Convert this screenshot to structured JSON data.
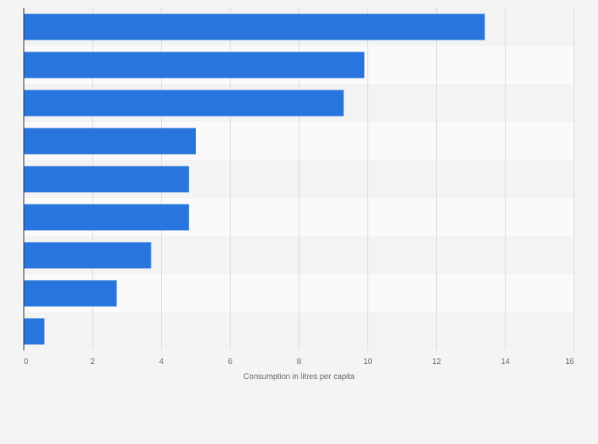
{
  "chart_data": {
    "type": "bar",
    "orientation": "horizontal",
    "title": "",
    "xlabel": "Consumption in litres per capita",
    "ylabel": "",
    "categories": [
      "",
      "",
      "",
      "",
      "",
      "",
      "",
      "",
      ""
    ],
    "values": [
      13.4,
      9.9,
      9.3,
      5.0,
      4.8,
      4.8,
      3.7,
      2.7,
      0.6
    ],
    "xlim": [
      0,
      16
    ],
    "xticks": [
      "0",
      "2",
      "4",
      "6",
      "8",
      "10",
      "12",
      "14",
      "16"
    ],
    "grid": true,
    "legend": "none",
    "colors": {
      "bar": "#2876dd",
      "background": "#f4f4f4",
      "band_light": "#fafafa",
      "band_dark": "#f3f3f3",
      "grid": "#dddddd",
      "axis": "#333333"
    }
  }
}
